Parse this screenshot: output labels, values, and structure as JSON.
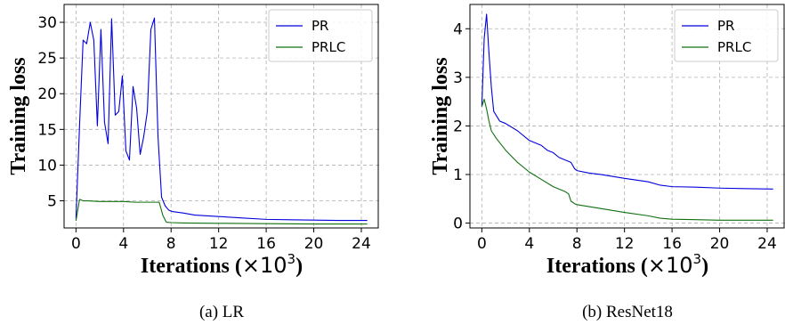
{
  "chart_data": [
    {
      "type": "line",
      "caption": "(a)  LR",
      "xlabel": "Iterations (×10³)",
      "xlabel_parts": [
        "Iterations (",
        "×10",
        "3",
        ")"
      ],
      "ylabel": "Training loss",
      "xlim": [
        -1,
        25.5
      ],
      "ylim": [
        1.2,
        32.5
      ],
      "xticks": [
        0,
        4,
        8,
        12,
        16,
        20,
        24
      ],
      "yticks": [
        5,
        10,
        15,
        20,
        25,
        30
      ],
      "grid": true,
      "legend_position": "top-right",
      "series": [
        {
          "name": "PR",
          "color": "#0000dd",
          "x": [
            0,
            0.3,
            0.6,
            0.9,
            1.2,
            1.5,
            1.8,
            2.1,
            2.4,
            2.7,
            3.0,
            3.3,
            3.6,
            3.9,
            4.2,
            4.5,
            4.8,
            5.1,
            5.4,
            5.7,
            6.0,
            6.3,
            6.6,
            6.9,
            7.2,
            7.5,
            7.8,
            8.1,
            9,
            10,
            12,
            14,
            16,
            18,
            20,
            22,
            24.5
          ],
          "y": [
            2.5,
            15.5,
            27.5,
            27.0,
            30.0,
            27.5,
            15.5,
            29.0,
            16.0,
            13.0,
            30.5,
            17.0,
            17.5,
            22.5,
            12.0,
            10.7,
            21.0,
            18.0,
            11.5,
            14.0,
            17.5,
            29.0,
            30.6,
            14.0,
            5.5,
            4.3,
            3.7,
            3.5,
            3.3,
            3.0,
            2.8,
            2.6,
            2.4,
            2.35,
            2.3,
            2.25,
            2.25
          ]
        },
        {
          "name": "PRLC",
          "color": "#107010",
          "x": [
            0,
            0.3,
            0.6,
            1.0,
            2,
            3,
            4,
            5,
            6,
            7,
            7.3,
            7.6,
            8.0,
            9,
            12,
            16,
            20,
            24.5
          ],
          "y": [
            2.2,
            5.2,
            5.0,
            5.0,
            4.9,
            4.9,
            4.9,
            4.8,
            4.8,
            4.8,
            3.0,
            2.0,
            1.95,
            1.9,
            1.85,
            1.8,
            1.75,
            1.75
          ]
        }
      ]
    },
    {
      "type": "line",
      "caption": "(b)  ResNet18",
      "xlabel": "Iterations (×10³)",
      "xlabel_parts": [
        "Iterations (",
        "×10",
        "3",
        ")"
      ],
      "ylabel": "Training loss",
      "xlim": [
        -1,
        25.5
      ],
      "ylim": [
        -0.1,
        4.5
      ],
      "xticks": [
        0,
        4,
        8,
        12,
        16,
        20,
        24
      ],
      "yticks": [
        0,
        1,
        2,
        3,
        4
      ],
      "grid": true,
      "legend_position": "top-right",
      "series": [
        {
          "name": "PR",
          "color": "#0000dd",
          "x": [
            0,
            0.2,
            0.4,
            0.6,
            0.8,
            1.0,
            1.5,
            2,
            3,
            4,
            4.5,
            5,
            5.5,
            6,
            6.5,
            7,
            7.5,
            7.8,
            8,
            9,
            10,
            12,
            14,
            15,
            16,
            18,
            20,
            22,
            24.5
          ],
          "y": [
            2.4,
            3.8,
            4.3,
            3.5,
            2.8,
            2.3,
            2.1,
            2.05,
            1.9,
            1.7,
            1.65,
            1.6,
            1.5,
            1.45,
            1.35,
            1.3,
            1.25,
            1.12,
            1.08,
            1.03,
            1.0,
            0.92,
            0.85,
            0.78,
            0.75,
            0.74,
            0.72,
            0.71,
            0.7
          ]
        },
        {
          "name": "PRLC",
          "color": "#107010",
          "x": [
            0,
            0.2,
            0.4,
            0.6,
            0.8,
            1.2,
            2,
            3,
            4,
            5,
            6,
            7,
            7.3,
            7.5,
            7.8,
            8,
            10,
            12,
            14,
            15,
            16,
            18,
            20,
            22,
            24.5
          ],
          "y": [
            2.4,
            2.55,
            2.35,
            2.1,
            1.9,
            1.75,
            1.5,
            1.25,
            1.05,
            0.9,
            0.75,
            0.65,
            0.6,
            0.45,
            0.4,
            0.38,
            0.3,
            0.22,
            0.15,
            0.1,
            0.08,
            0.07,
            0.06,
            0.06,
            0.06
          ]
        }
      ]
    }
  ]
}
